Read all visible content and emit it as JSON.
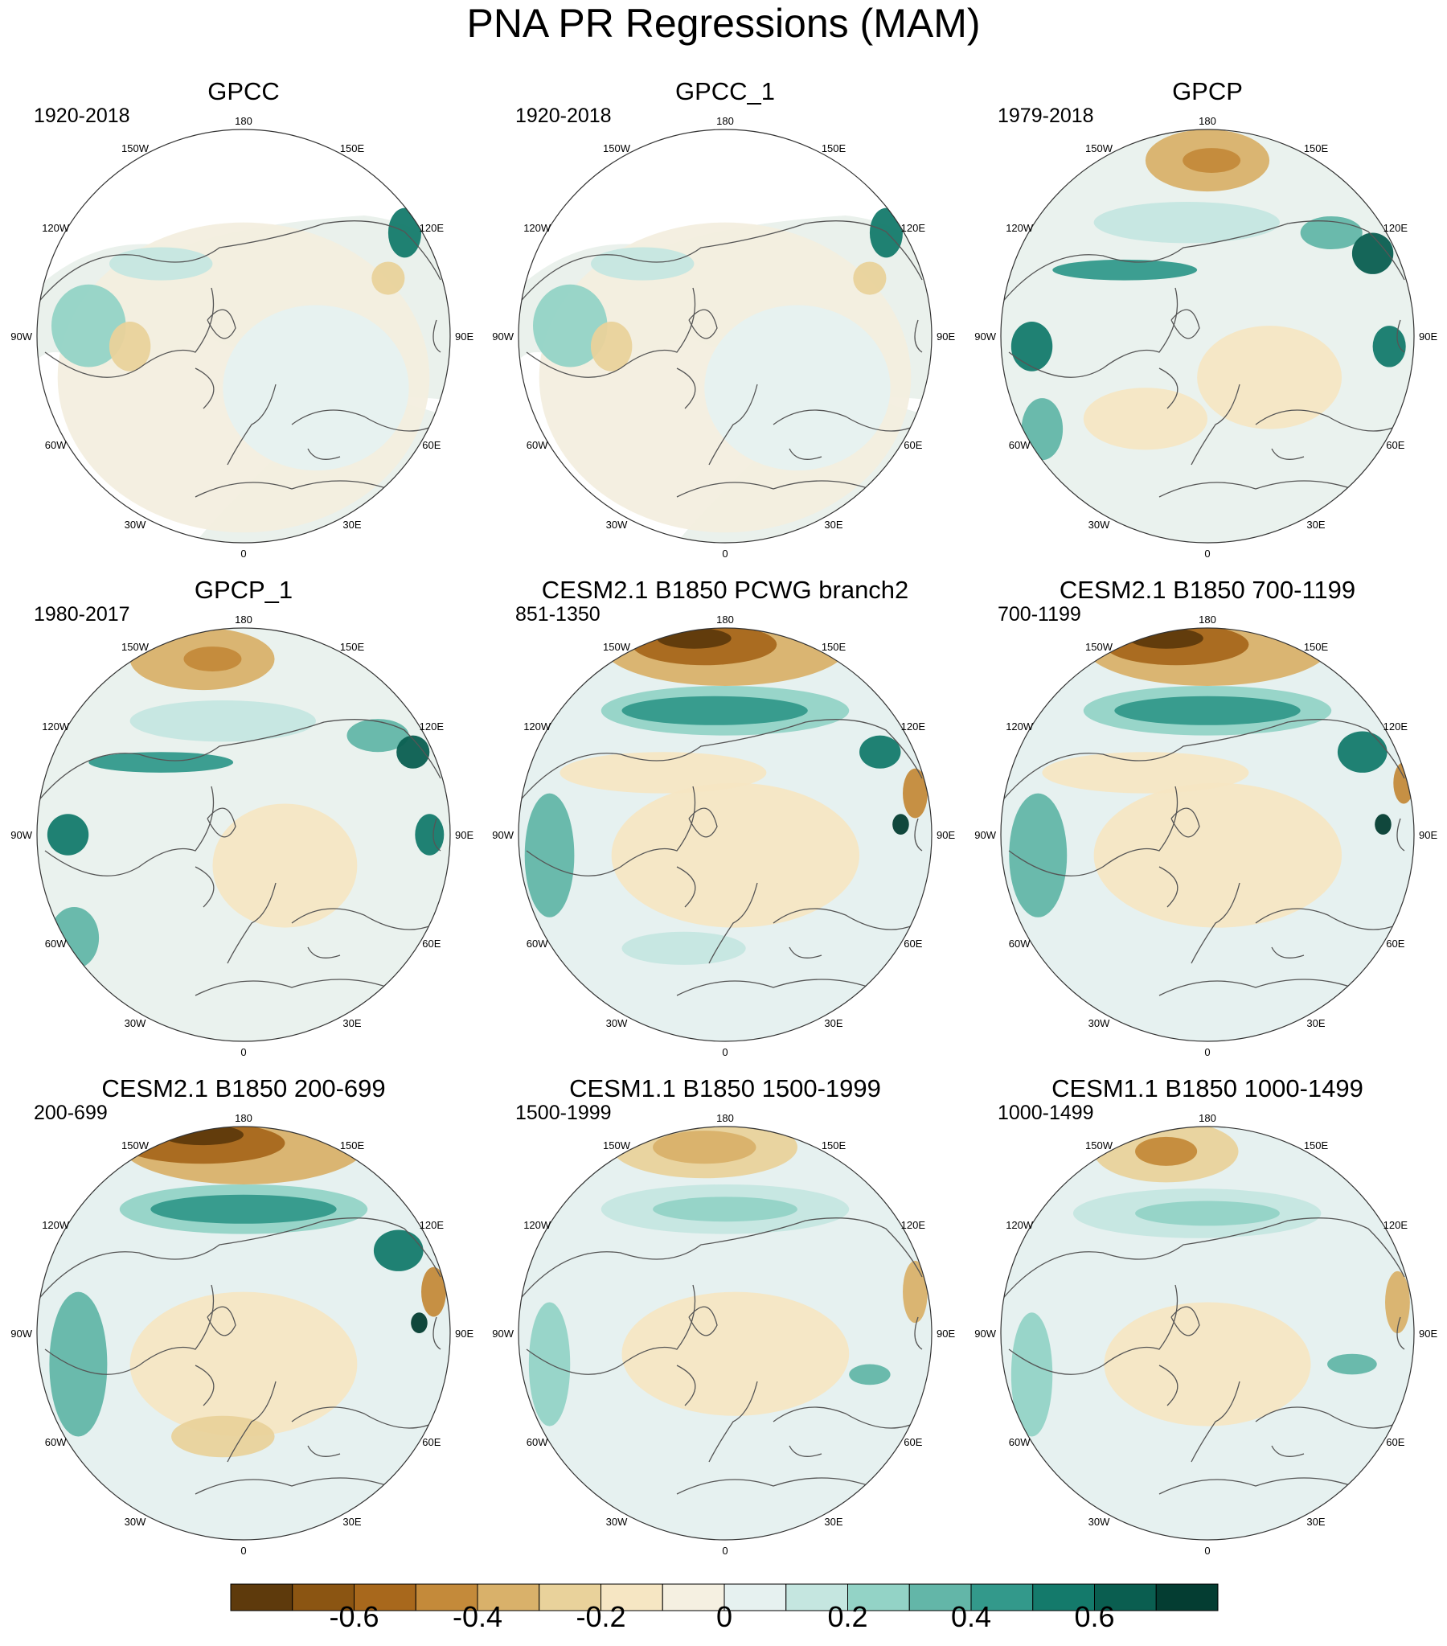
{
  "title": "PNA PR Regressions (MAM)",
  "lon_labels": [
    "180",
    "150E",
    "120E",
    "90E",
    "60E",
    "30E",
    "0",
    "30W",
    "60W",
    "90W",
    "120W",
    "150W"
  ],
  "panels": [
    {
      "title": "GPCC",
      "period": "1920-2018"
    },
    {
      "title": "GPCC_1",
      "period": "1920-2018"
    },
    {
      "title": "GPCP",
      "period": "1979-2018"
    },
    {
      "title": "GPCP_1",
      "period": "1980-2017"
    },
    {
      "title": "CESM2.1 B1850 PCWG branch2",
      "period": "851-1350"
    },
    {
      "title": "CESM2.1 B1850 700-1199",
      "period": "700-1199"
    },
    {
      "title": "CESM2.1 B1850 200-699",
      "period": "200-699"
    },
    {
      "title": "CESM1.1 B1850 1500-1999",
      "period": "1500-1999"
    },
    {
      "title": "CESM1.1 B1850 1000-1499",
      "period": "1000-1499"
    }
  ],
  "chart_data": {
    "type": "heatmap",
    "title": "PNA PR Regressions (MAM)",
    "projection": "north polar stereographic",
    "colorbar": {
      "levels": [
        -0.7,
        -0.6,
        -0.5,
        -0.4,
        -0.3,
        -0.2,
        -0.1,
        0,
        0.1,
        0.2,
        0.3,
        0.4,
        0.5,
        0.6,
        0.7
      ],
      "colors": [
        "#5e3a0c",
        "#8b5512",
        "#a8681c",
        "#c48a3a",
        "#d9b16a",
        "#e9d29b",
        "#f6e6c3",
        "#f5f0e1",
        "#e6f1f0",
        "#c5e6e0",
        "#93d3c6",
        "#63b6a8",
        "#33998b",
        "#147a6b",
        "#0a5e50",
        "#043d32"
      ],
      "tick_labels": [
        "-0.6",
        "-0.4",
        "-0.2",
        "0",
        "0.2",
        "0.4",
        "0.6"
      ],
      "tick_values": [
        -0.6,
        -0.4,
        -0.2,
        0,
        0.2,
        0.4,
        0.6
      ]
    }
  }
}
